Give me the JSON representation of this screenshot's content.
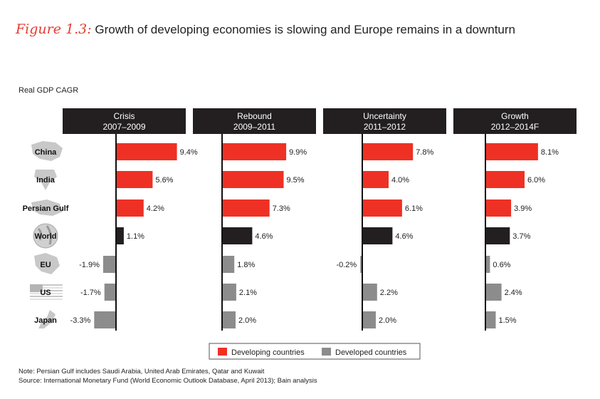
{
  "title": {
    "figure_label": "Figure 1.3:",
    "text": "Growth of developing economies is slowing and Europe remains in a downturn"
  },
  "note": "Note:  Persian Gulf includes Saudi Arabia, United Arab Emirates, Qatar and Kuwait",
  "source": "Source:  International Monetary Fund (World Economic Outlook Database, April 2013); Bain analysis",
  "colors": {
    "developing": "#ee3124",
    "developed": "#8c8c8c",
    "world": "#231f20",
    "header_bg": "#231f20",
    "region_icon": "#c8c8c8"
  },
  "chart_data": {
    "type": "bar",
    "orientation": "horizontal",
    "ylabel": "Real GDP CAGR",
    "categories": [
      "China",
      "India",
      "Persian Gulf",
      "World",
      "EU",
      "US",
      "Japan"
    ],
    "category_group": [
      "developing",
      "developing",
      "developing",
      "world",
      "developed",
      "developed",
      "developed"
    ],
    "icons": [
      "china-map-icon",
      "india-map-icon",
      "persian-gulf-map-icon",
      "globe-icon",
      "eu-map-icon",
      "us-flag-icon",
      "japan-map-icon"
    ],
    "panels": [
      {
        "title": "Crisis",
        "period": "2007–2009",
        "values": [
          9.4,
          5.6,
          4.2,
          1.1,
          -1.9,
          -1.7,
          -3.3
        ],
        "labels": [
          "9.4%",
          "5.6%",
          "4.2%",
          "1.1%",
          "-1.9%",
          "-1.7%",
          "-3.3%"
        ]
      },
      {
        "title": "Rebound",
        "period": "2009–2011",
        "values": [
          9.9,
          9.5,
          7.3,
          4.6,
          1.8,
          2.1,
          2.0
        ],
        "labels": [
          "9.9%",
          "9.5%",
          "7.3%",
          "4.6%",
          "1.8%",
          "2.1%",
          "2.0%"
        ]
      },
      {
        "title": "Uncertainty",
        "period": "2011–2012",
        "values": [
          7.8,
          4.0,
          6.1,
          4.6,
          -0.2,
          2.2,
          2.0
        ],
        "labels": [
          "7.8%",
          "4.0%",
          "6.1%",
          "4.6%",
          "-0.2%",
          "2.2%",
          "2.0%"
        ]
      },
      {
        "title": "Growth",
        "period": "2012–2014F",
        "values": [
          8.1,
          6.0,
          3.9,
          3.7,
          0.6,
          2.4,
          1.5
        ],
        "labels": [
          "8.1%",
          "6.0%",
          "3.9%",
          "3.7%",
          "0.6%",
          "2.4%",
          "1.5%"
        ]
      }
    ],
    "legend": [
      {
        "label": "Developing countries",
        "color": "#ee3124"
      },
      {
        "label": "Developed countries",
        "color": "#8c8c8c"
      }
    ],
    "legend_position": "bottom-center",
    "grid": false
  }
}
